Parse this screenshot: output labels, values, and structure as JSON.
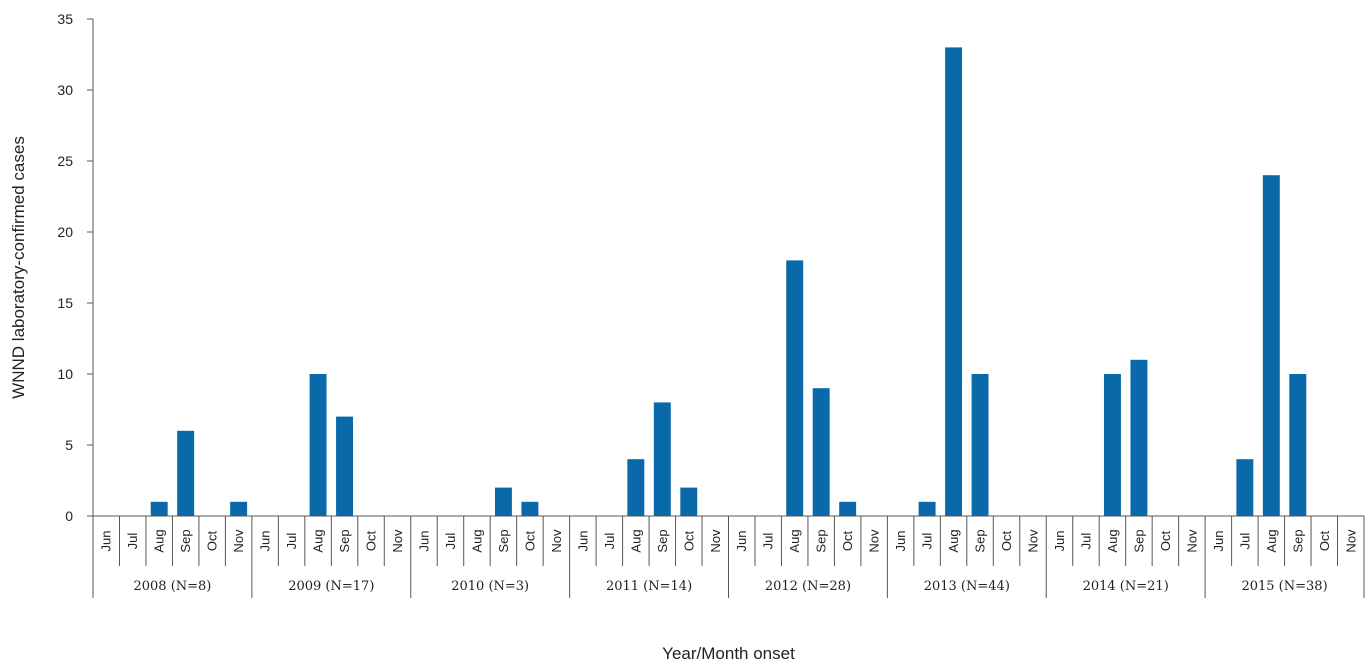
{
  "chart_data": {
    "type": "bar",
    "title": "",
    "xlabel": "Year/Month onset",
    "ylabel": "WNND laboratory-confirmed cases",
    "ylim": [
      0,
      35
    ],
    "yticks": [
      "0",
      "5",
      "10",
      "15",
      "20",
      "25",
      "30",
      "35"
    ],
    "grid": false,
    "legend": "none",
    "bar_color": "#0a6aa9",
    "months": [
      "Jun",
      "Jul",
      "Aug",
      "Sep",
      "Oct",
      "Nov"
    ],
    "groups": [
      {
        "label": "2008 (N=8)",
        "values": [
          0,
          0,
          1,
          6,
          0,
          1
        ]
      },
      {
        "label": "2009 (N=17)",
        "values": [
          0,
          0,
          10,
          7,
          0,
          0
        ]
      },
      {
        "label": "2010 (N=3)",
        "values": [
          0,
          0,
          0,
          2,
          1,
          0
        ]
      },
      {
        "label": "2011 (N=14)",
        "values": [
          0,
          0,
          4,
          8,
          2,
          0
        ]
      },
      {
        "label": "2012 (N=28)",
        "values": [
          0,
          0,
          18,
          9,
          1,
          0
        ]
      },
      {
        "label": "2013 (N=44)",
        "values": [
          0,
          1,
          33,
          10,
          0,
          0
        ]
      },
      {
        "label": "2014 (N=21)",
        "values": [
          0,
          0,
          10,
          11,
          0,
          0
        ]
      },
      {
        "label": "2015 (N=38)",
        "values": [
          0,
          4,
          24,
          10,
          0,
          0
        ]
      }
    ]
  }
}
